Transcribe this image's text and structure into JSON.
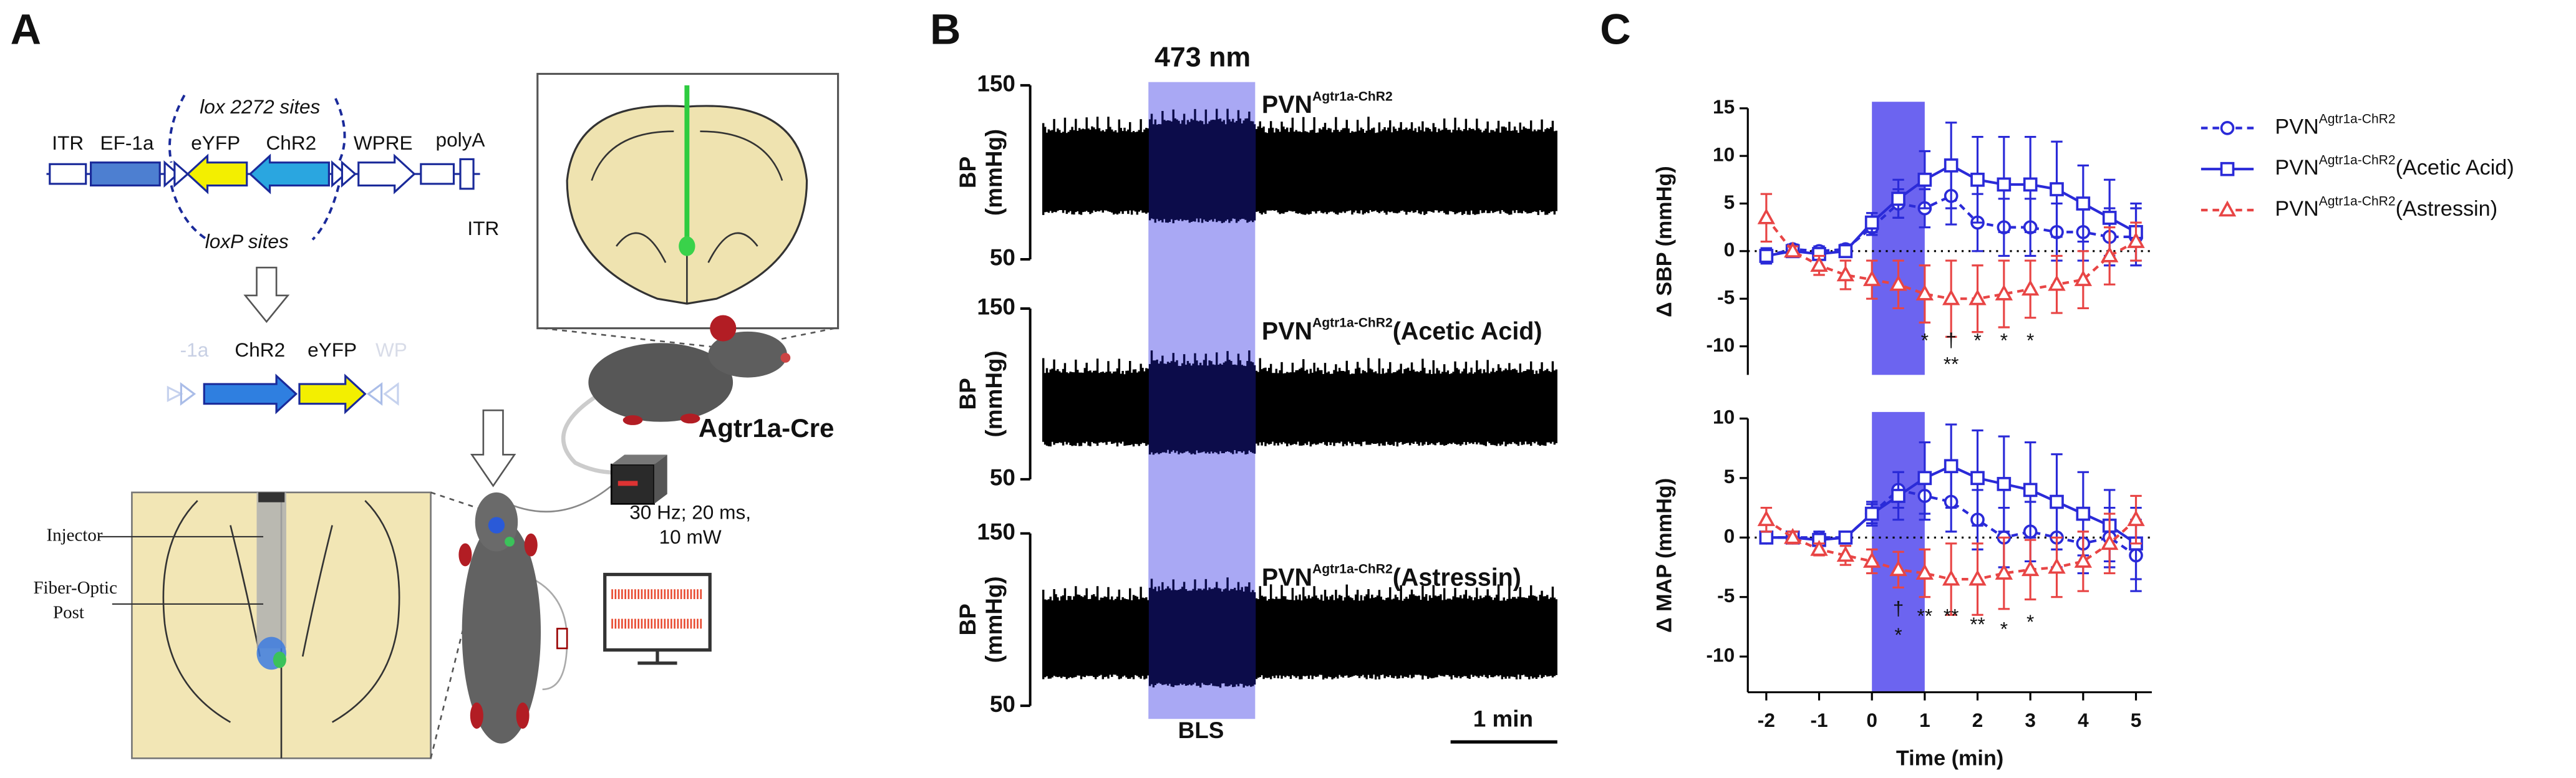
{
  "panel_a": {
    "label": "A",
    "construct": {
      "itr_left": "ITR",
      "promoter": "EF-1a",
      "eyfp": "eYFP",
      "chr2": "ChR2",
      "wpre": "WPRE",
      "polya": "polyA",
      "itr_right": "ITR",
      "lox2272": "lox 2272 sites",
      "loxp": "loxP sites"
    },
    "recombined": {
      "promoter_fragment": "-1a",
      "chr2": "ChR2",
      "eyfp": "eYFP",
      "wpre_fragment": "WP"
    },
    "injector": "Injector",
    "fiber_optic": "Fiber-Optic",
    "post": "Post",
    "mouse_line": "Agtr1a-Cre",
    "stim_params": "30 Hz; 20 ms,",
    "power": "10 mW"
  },
  "panel_b": {
    "label": "B",
    "stimulus": "473 nm",
    "traces": [
      {
        "label": "PVN",
        "label_superscript": "Agtr1a-ChR2",
        "ymax": 150,
        "ymin": 50,
        "ylabel": "BP",
        "yunit": "(mmHg)"
      },
      {
        "label": "PVN",
        "label_superscript": "Agtr1a-ChR2",
        "label_suffix": "(Acetic Acid)",
        "ymax": 150,
        "ymin": 50,
        "ylabel": "BP",
        "yunit": "(mmHg)"
      },
      {
        "label": "PVN",
        "label_superscript": "Agtr1a-ChR2",
        "label_suffix": "(Astressin)",
        "ymax": 150,
        "ymin": 50,
        "ylabel": "BP",
        "yunit": "(mmHg)"
      }
    ],
    "stim_label": "BLS",
    "scale_bar": "1 min"
  },
  "panel_c_label": "C",
  "chart_data": [
    {
      "type": "line",
      "ylabel": "Δ SBP (mmHg)",
      "x": [
        -2,
        -1.5,
        -1,
        -0.5,
        0,
        0.5,
        1,
        1.5,
        2,
        2.5,
        3,
        3.5,
        4,
        4.5,
        5
      ],
      "xlim": [
        -2.35,
        5.3
      ],
      "ylim": [
        -13,
        15
      ],
      "yticks": [
        -10,
        -5,
        0,
        5,
        10,
        15
      ],
      "stim_window": [
        0,
        1
      ],
      "stim_color": "#6c64f0",
      "zero_line": true,
      "legend": "right",
      "series": [
        {
          "name": "PVN",
          "name_superscript": "Agtr1a-ChR2",
          "color": "#2a2ad8",
          "marker": "circle",
          "linestyle": "dashed",
          "values": [
            -0.5,
            0.2,
            0,
            0.2,
            2.5,
            5,
            4.5,
            5.8,
            3,
            2.5,
            2.5,
            2,
            2,
            1.5,
            1.5
          ],
          "errors": [
            0.8,
            0.5,
            0.5,
            0.5,
            0.8,
            1.5,
            2,
            3,
            3,
            3,
            3,
            3,
            3,
            3,
            3
          ]
        },
        {
          "name": "PVN",
          "name_superscript": "Agtr1a-ChR2",
          "name_suffix": "(Acetic Acid)",
          "color": "#2a2ad8",
          "marker": "square",
          "linestyle": "solid",
          "values": [
            -0.5,
            0,
            -0.3,
            0,
            3,
            5.5,
            7.5,
            9,
            7.5,
            7,
            7,
            6.5,
            5,
            3.5,
            2
          ],
          "errors": [
            0.8,
            0.5,
            0.5,
            0.5,
            1,
            2,
            3,
            4.5,
            4.5,
            5,
            5,
            5,
            4,
            4,
            3
          ]
        },
        {
          "name": "PVN",
          "name_superscript": "Agtr1a-ChR2",
          "name_suffix": "(Astressin)",
          "color": "#e84545",
          "marker": "triangle",
          "linestyle": "dashed",
          "values": [
            3.5,
            0,
            -1.5,
            -2.5,
            -3,
            -3.5,
            -4.5,
            -5,
            -5,
            -4.5,
            -4,
            -3.5,
            -3,
            -0.5,
            1
          ],
          "errors": [
            2.5,
            0.5,
            1,
            1.5,
            2,
            2.5,
            3,
            4,
            3.5,
            3.5,
            3,
            3,
            3,
            3,
            2
          ]
        }
      ],
      "annotations": [
        {
          "text": "*",
          "x": 1,
          "y": -9.5
        },
        {
          "text": "†",
          "x": 1.5,
          "y": -9.5
        },
        {
          "text": "**",
          "x": 1.5,
          "y": -12
        },
        {
          "text": "*",
          "x": 2,
          "y": -9.5
        },
        {
          "text": "*",
          "x": 2.5,
          "y": -9.5
        },
        {
          "text": "*",
          "x": 3,
          "y": -9.5
        }
      ]
    },
    {
      "type": "line",
      "ylabel": "Δ MAP (mmHg)",
      "xlabel": "Time (min)",
      "x": [
        -2,
        -1.5,
        -1,
        -0.5,
        0,
        0.5,
        1,
        1.5,
        2,
        2.5,
        3,
        3.5,
        4,
        4.5,
        5
      ],
      "xlim": [
        -2.35,
        5.3
      ],
      "xticks": [
        -2,
        -1,
        0,
        1,
        2,
        3,
        4,
        5
      ],
      "ylim": [
        -13,
        10
      ],
      "yticks": [
        -10,
        -5,
        0,
        5,
        10
      ],
      "stim_window": [
        0,
        1
      ],
      "stim_color": "#6c64f0",
      "zero_line": true,
      "series": [
        {
          "color": "#2a2ad8",
          "marker": "circle",
          "linestyle": "dashed",
          "values": [
            0,
            0,
            0,
            0,
            2,
            4,
            3.5,
            3,
            1.5,
            0,
            0.5,
            0,
            -0.5,
            0,
            -1.5
          ],
          "errors": [
            0.5,
            0.5,
            0.5,
            0.5,
            0.8,
            1.5,
            2,
            2.5,
            2.5,
            2.5,
            2.5,
            2.5,
            2.5,
            2.5,
            3
          ]
        },
        {
          "color": "#2a2ad8",
          "marker": "square",
          "linestyle": "solid",
          "values": [
            0,
            0,
            -0.2,
            0,
            2,
            3.5,
            5,
            6,
            5,
            4.5,
            4,
            3,
            2,
            1,
            -0.5
          ],
          "errors": [
            0.5,
            0.5,
            0.5,
            0.5,
            1,
            2,
            3,
            3.5,
            4,
            4,
            4,
            4,
            3.5,
            3,
            3
          ]
        },
        {
          "color": "#e84545",
          "marker": "triangle",
          "linestyle": "dashed",
          "values": [
            1.5,
            0,
            -1,
            -1.5,
            -2,
            -2.7,
            -3,
            -3.5,
            -3.5,
            -3,
            -2.7,
            -2.5,
            -2,
            -0.5,
            1.5
          ],
          "errors": [
            1,
            0.5,
            0.5,
            0.8,
            1,
            1.5,
            2,
            3,
            3,
            3,
            2.5,
            2.5,
            2.5,
            2.5,
            2
          ]
        }
      ],
      "annotations": [
        {
          "text": "†",
          "x": 0.5,
          "y": -6.1
        },
        {
          "text": "*",
          "x": 0.5,
          "y": -8.3
        },
        {
          "text": "**",
          "x": 1,
          "y": -6.7
        },
        {
          "text": "**",
          "x": 1.5,
          "y": -6.7
        },
        {
          "text": "**",
          "x": 2,
          "y": -7.4
        },
        {
          "text": "*",
          "x": 2.5,
          "y": -7.8
        },
        {
          "text": "*",
          "x": 3,
          "y": -7.2
        }
      ]
    }
  ]
}
